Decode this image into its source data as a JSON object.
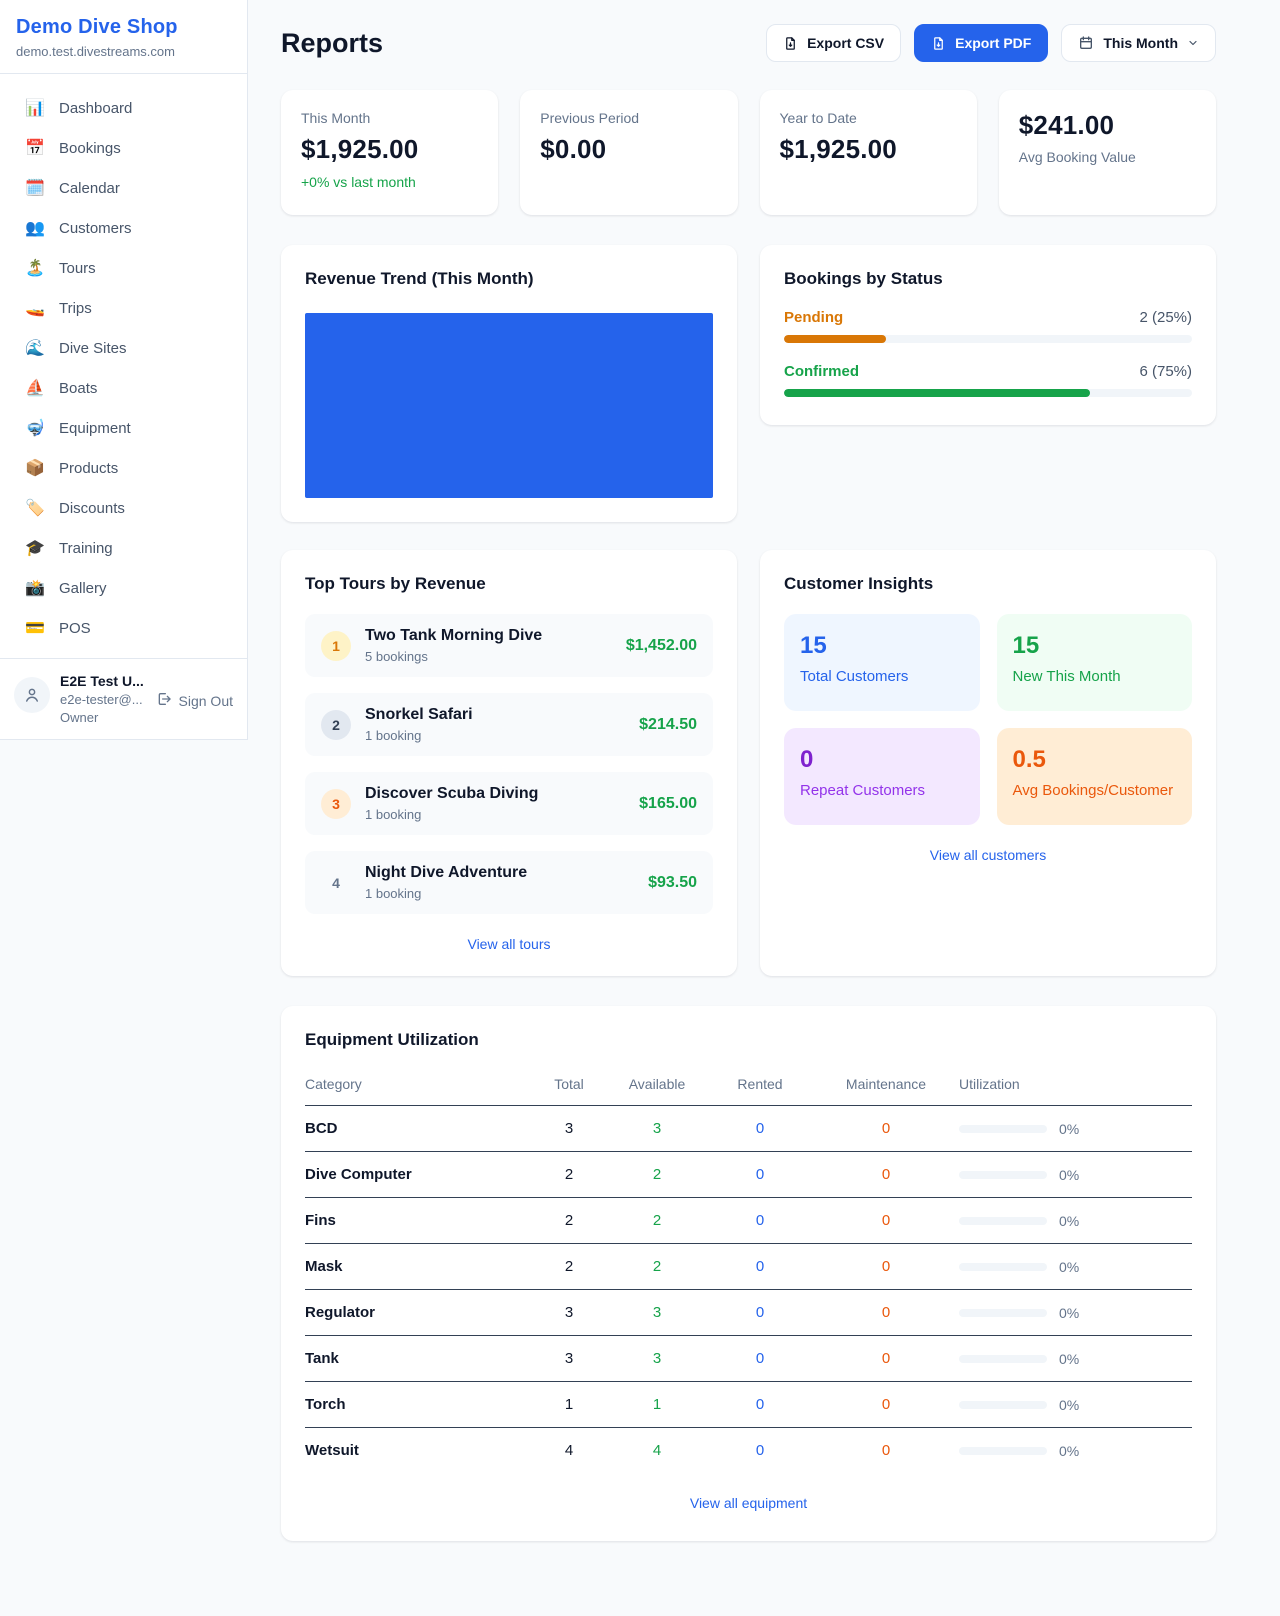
{
  "sidebar": {
    "title": "Demo Dive Shop",
    "subdomain": "demo.test.divestreams.com",
    "items": [
      {
        "icon": "📊",
        "label": "Dashboard"
      },
      {
        "icon": "📅",
        "label": "Bookings"
      },
      {
        "icon": "🗓️",
        "label": "Calendar"
      },
      {
        "icon": "👥",
        "label": "Customers"
      },
      {
        "icon": "🏝️",
        "label": "Tours"
      },
      {
        "icon": "🚤",
        "label": "Trips"
      },
      {
        "icon": "🌊",
        "label": "Dive Sites"
      },
      {
        "icon": "⛵",
        "label": "Boats"
      },
      {
        "icon": "🤿",
        "label": "Equipment"
      },
      {
        "icon": "📦",
        "label": "Products"
      },
      {
        "icon": "🏷️",
        "label": "Discounts"
      },
      {
        "icon": "🎓",
        "label": "Training"
      },
      {
        "icon": "📸",
        "label": "Gallery"
      },
      {
        "icon": "💳",
        "label": "POS"
      }
    ],
    "user": {
      "name": "E2E Test U...",
      "email": "e2e-tester@...",
      "role": "Owner",
      "signout_label": "Sign Out"
    }
  },
  "header": {
    "title": "Reports",
    "export_csv_label": "Export CSV",
    "export_pdf_label": "Export PDF",
    "period_label": "This Month"
  },
  "stats": [
    {
      "label": "This Month",
      "value": "$1,925.00",
      "sub": "+0% vs last month"
    },
    {
      "label": "Previous Period",
      "value": "$0.00"
    },
    {
      "label": "Year to Date",
      "value": "$1,925.00"
    },
    {
      "label": "Avg Booking Value",
      "value": "$241.00"
    }
  ],
  "revenue_trend": {
    "title": "Revenue Trend (This Month)"
  },
  "chart_data": {
    "type": "bar",
    "title": "Revenue Trend (This Month)",
    "categories": [
      "This Month"
    ],
    "values": [
      1925
    ],
    "bar_color": "#2563eb",
    "axes_visible": false,
    "grid": false
  },
  "bookings_by_status": {
    "title": "Bookings by Status",
    "statuses": [
      {
        "label": "Pending",
        "count_label": "2 (25%)",
        "pct": 25,
        "color": "#d97706"
      },
      {
        "label": "Confirmed",
        "count_label": "6 (75%)",
        "pct": 75,
        "color": "#16a34a"
      }
    ]
  },
  "top_tours": {
    "title": "Top Tours by Revenue",
    "view_all": "View all tours",
    "items": [
      {
        "rank": "1",
        "name": "Two Tank Morning Dive",
        "bookings": "5 bookings",
        "revenue": "$1,452.00"
      },
      {
        "rank": "2",
        "name": "Snorkel Safari",
        "bookings": "1 booking",
        "revenue": "$214.50"
      },
      {
        "rank": "3",
        "name": "Discover Scuba Diving",
        "bookings": "1 booking",
        "revenue": "$165.00"
      },
      {
        "rank": "4",
        "name": "Night Dive Adventure",
        "bookings": "1 booking",
        "revenue": "$93.50"
      }
    ]
  },
  "customer_insights": {
    "title": "Customer Insights",
    "view_all": "View all customers",
    "tiles": [
      {
        "value": "15",
        "label": "Total Customers",
        "color": "#2563eb"
      },
      {
        "value": "15",
        "label": "New This Month",
        "color": "#16a34a"
      },
      {
        "value": "0",
        "label": "Repeat Customers",
        "color": "#9333ea"
      },
      {
        "value": "0.5",
        "label": "Avg Bookings/Customer",
        "color": "#ea580c"
      }
    ]
  },
  "equipment": {
    "title": "Equipment Utilization",
    "view_all": "View all equipment",
    "columns": [
      "Category",
      "Total",
      "Available",
      "Rented",
      "Maintenance",
      "Utilization"
    ],
    "rows": [
      {
        "category": "BCD",
        "total": "3",
        "available": "3",
        "rented": "0",
        "maintenance": "0",
        "utilization_pct": 0,
        "utilization_label": "0%"
      },
      {
        "category": "Dive Computer",
        "total": "2",
        "available": "2",
        "rented": "0",
        "maintenance": "0",
        "utilization_pct": 0,
        "utilization_label": "0%"
      },
      {
        "category": "Fins",
        "total": "2",
        "available": "2",
        "rented": "0",
        "maintenance": "0",
        "utilization_pct": 0,
        "utilization_label": "0%"
      },
      {
        "category": "Mask",
        "total": "2",
        "available": "2",
        "rented": "0",
        "maintenance": "0",
        "utilization_pct": 0,
        "utilization_label": "0%"
      },
      {
        "category": "Regulator",
        "total": "3",
        "available": "3",
        "rented": "0",
        "maintenance": "0",
        "utilization_pct": 0,
        "utilization_label": "0%"
      },
      {
        "category": "Tank",
        "total": "3",
        "available": "3",
        "rented": "0",
        "maintenance": "0",
        "utilization_pct": 0,
        "utilization_label": "0%"
      },
      {
        "category": "Torch",
        "total": "1",
        "available": "1",
        "rented": "0",
        "maintenance": "0",
        "utilization_pct": 0,
        "utilization_label": "0%"
      },
      {
        "category": "Wetsuit",
        "total": "4",
        "available": "4",
        "rented": "0",
        "maintenance": "0",
        "utilization_pct": 0,
        "utilization_label": "0%"
      }
    ]
  },
  "colors": {
    "accent_blue": "#2563eb",
    "green": "#16a34a",
    "amber": "#d97706",
    "deep_orange": "#ea580c",
    "purple": "#9333ea"
  }
}
